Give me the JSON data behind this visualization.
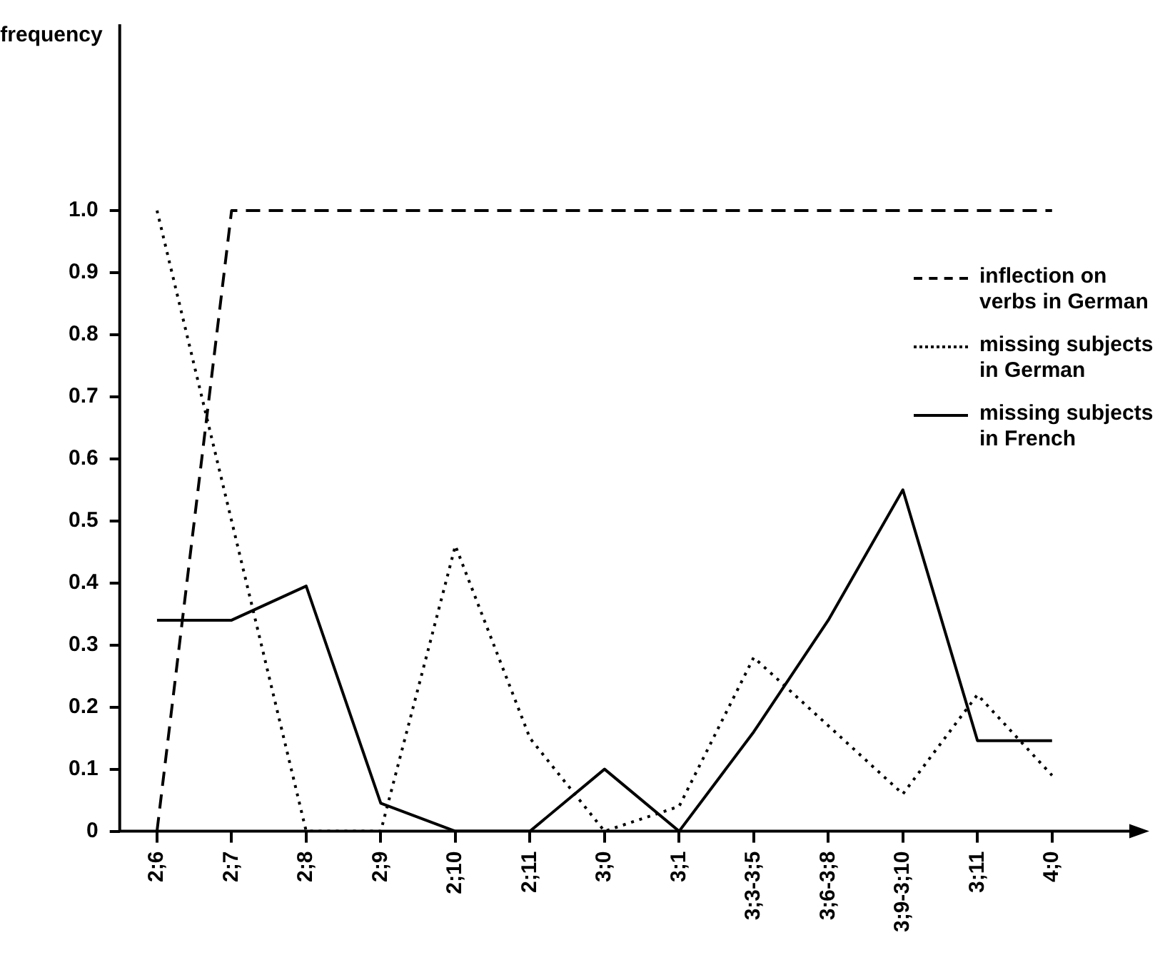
{
  "chart_data": {
    "type": "line",
    "ylabel": "frequency",
    "categories": [
      "2;6",
      "2;7",
      "2;8",
      "2;9",
      "2;10",
      "2;11",
      "3;0",
      "3;1",
      "3;3-3;5",
      "3;6-3;8",
      "3;9-3;10",
      "3;11",
      "4;0"
    ],
    "series": [
      {
        "name": "inflection on verbs in German",
        "color": "#000000",
        "line_style": "dashed",
        "values": [
          0,
          1,
          1,
          1,
          1,
          1,
          1,
          1,
          1,
          1,
          1,
          1,
          1
        ]
      },
      {
        "name": "missing subjects in German",
        "color": "#000000",
        "line_style": "dotted",
        "values": [
          1,
          0.5,
          0,
          0,
          0.46,
          0.15,
          0,
          0.04,
          0.28,
          0.17,
          0.06,
          0.22,
          0.09
        ]
      },
      {
        "name": "missing subjects in French",
        "color": "#000000",
        "line_style": "solid",
        "values": [
          0.34,
          0.34,
          0.395,
          0.045,
          0,
          0,
          0.1,
          0,
          0.16,
          0.34,
          0.55,
          0.146,
          0.146
        ]
      }
    ],
    "ylim": [
      0,
      1.3
    ],
    "yticks": [
      0,
      0.1,
      0.2,
      0.3,
      0.4,
      0.5,
      0.6,
      0.7,
      0.8,
      0.9,
      {
        "value": 1,
        "label": "1.0"
      }
    ],
    "grid": false,
    "legend": "right",
    "marker": "none"
  }
}
